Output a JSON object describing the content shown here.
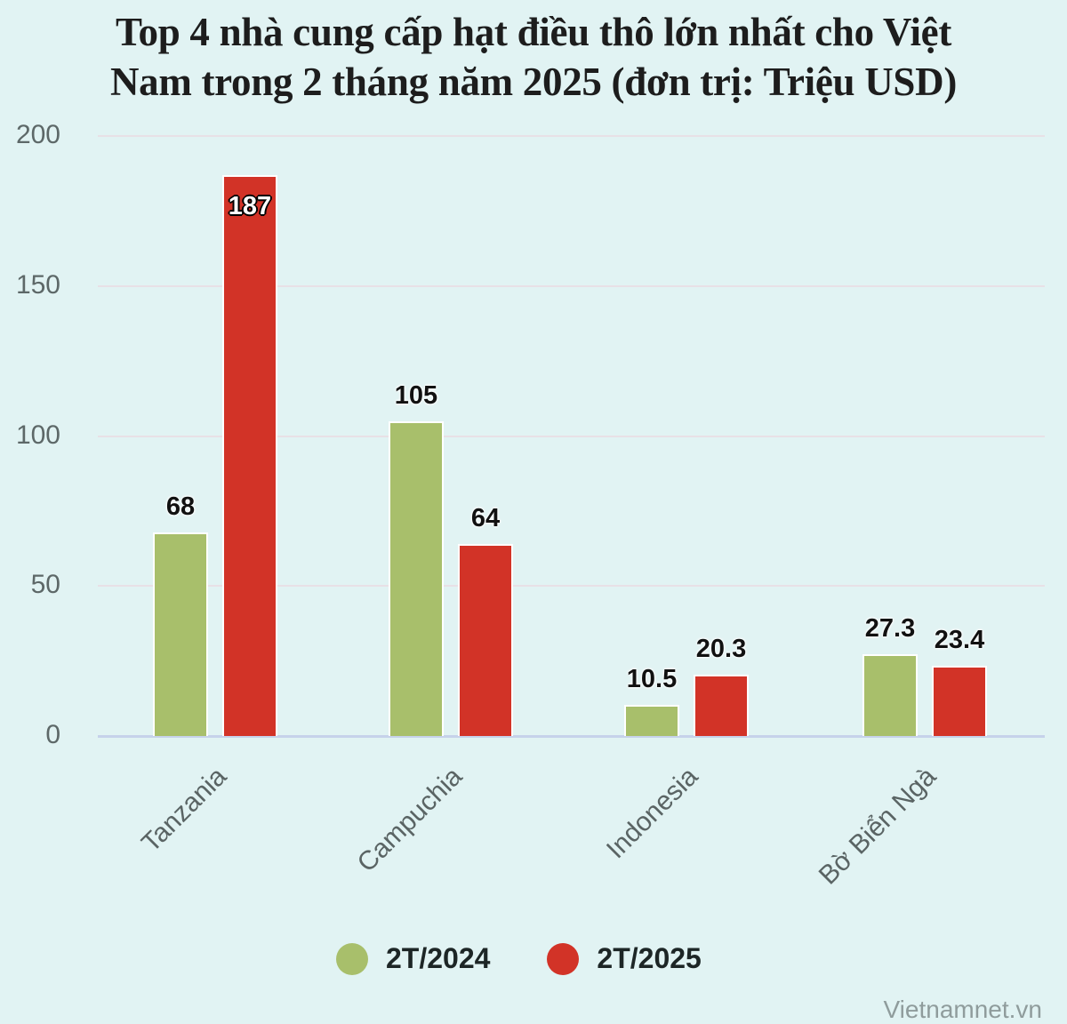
{
  "chart_data": {
    "type": "bar",
    "title": "Top 4 nhà cung cấp hạt điều thô lớn nhất cho Việt Nam trong 2 tháng năm 2025 (đơn trị: Triệu USD)",
    "title_lines": [
      "Top 4 nhà cung cấp hạt điều thô lớn nhất cho Việt",
      "Nam trong 2 tháng năm 2025 (đơn trị: Triệu USD)"
    ],
    "categories": [
      "Tanzania",
      "Campuchia",
      "Indonesia",
      "Bờ Biển Ngà"
    ],
    "series": [
      {
        "name": "2T/2024",
        "color": "#a8bf6b",
        "values": [
          68,
          105,
          10.5,
          27.3
        ],
        "labels": [
          "68",
          "105",
          "10.5",
          "27.3"
        ]
      },
      {
        "name": "2T/2025",
        "color": "#d23327",
        "values": [
          187,
          64,
          20.3,
          23.4
        ],
        "labels": [
          "187",
          "64",
          "20.3",
          "23.4"
        ]
      }
    ],
    "xlabel": "",
    "ylabel": "",
    "ylim": [
      0,
      200
    ],
    "yticks": [
      "0",
      "50",
      "100",
      "150",
      "200"
    ],
    "grid": true,
    "legend_position": "bottom"
  },
  "source": "Vietnamnet.vn"
}
